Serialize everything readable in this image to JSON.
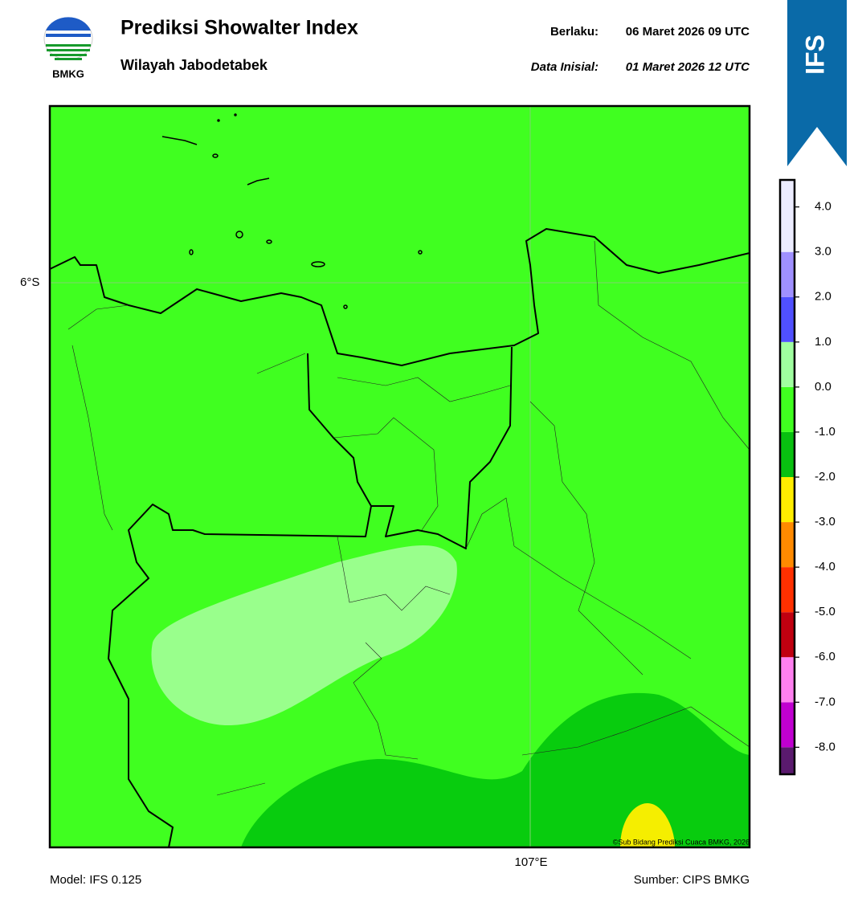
{
  "header": {
    "logo_text": "BMKG",
    "title": "Prediksi Showalter Index",
    "subtitle": "Wilayah Jabodetabek",
    "valid_label": "Berlaku:",
    "valid_time": "06 Maret 2026 09 UTC",
    "init_label": "Data Inisial:",
    "init_time": "01 Maret 2026 12 UTC"
  },
  "badge": "IFS",
  "map": {
    "lat_label": "6°S",
    "lon_label": "107°E",
    "credit": "©Sub Bidang Prediksi Cuaca BMKG, 2026"
  },
  "colorbar": {
    "lim": [
      -8.6,
      4.6
    ],
    "levels": [
      -8,
      -7,
      -6,
      -5,
      -4,
      -3,
      -2,
      -1,
      0,
      1,
      2,
      3
    ],
    "colors": [
      "#5a1a6e",
      "#c000d0",
      "#ff80f0",
      "#c00010",
      "#ff3000",
      "#ff8a00",
      "#ffee00",
      "#08c010",
      "#40ff20",
      "#a0ffa0",
      "#5050ff",
      "#a090ff",
      "#ececff"
    ],
    "ticks": [
      {
        "value": 4,
        "label": "4.0"
      },
      {
        "value": 3,
        "label": "3.0"
      },
      {
        "value": 2,
        "label": "2.0"
      },
      {
        "value": 1,
        "label": "1.0"
      },
      {
        "value": 0,
        "label": "0.0"
      },
      {
        "value": -1,
        "label": "-1.0"
      },
      {
        "value": -2,
        "label": "-2.0"
      },
      {
        "value": -3,
        "label": "-3.0"
      },
      {
        "value": -4,
        "label": "-4.0"
      },
      {
        "value": -5,
        "label": "-5.0"
      },
      {
        "value": -6,
        "label": "-6.0"
      },
      {
        "value": -7,
        "label": "-7.0"
      },
      {
        "value": -8,
        "label": "-8.0"
      }
    ]
  },
  "footer": {
    "model": "Model: IFS 0.125",
    "source": "Sumber: CIPS BMKG"
  }
}
